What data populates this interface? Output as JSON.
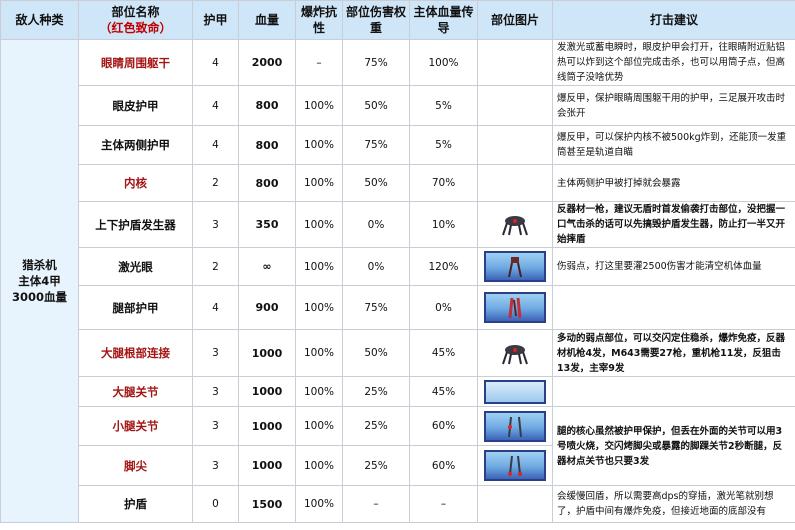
{
  "headers": {
    "enemy_type": "敌人种类",
    "part_name": "部位名称",
    "part_name_note": "（红色致命）",
    "armor": "护甲",
    "hp": "血量",
    "explosion_resist": "爆炸抗性",
    "damage_weight": "部位伤害权重",
    "main_hp_transfer": "主体血量传导",
    "part_image": "部位图片",
    "attack_advice": "打击建议"
  },
  "enemy": {
    "name": "猎杀机",
    "desc1": "主体4甲",
    "desc2": "3000血量"
  },
  "rows": [
    {
      "part": "眼睛周围躯干",
      "armor": "4",
      "hp": "2000",
      "explosion": "–",
      "weight": "75%",
      "transfer": "100%"
    },
    {
      "part": "眼皮护甲",
      "armor": "4",
      "hp": "800",
      "explosion": "100%",
      "weight": "50%",
      "transfer": "5%"
    },
    {
      "part": "主体两侧护甲",
      "armor": "4",
      "hp": "800",
      "explosion": "100%",
      "weight": "75%",
      "transfer": "5%"
    },
    {
      "part": "内核",
      "armor": "2",
      "hp": "800",
      "explosion": "100%",
      "weight": "50%",
      "transfer": "70%"
    },
    {
      "part": "上下护盾发生器",
      "armor": "3",
      "hp": "350",
      "explosion": "100%",
      "weight": "0%",
      "transfer": "10%"
    },
    {
      "part": "激光眼",
      "armor": "2",
      "hp": "∞",
      "explosion": "100%",
      "weight": "0%",
      "transfer": "120%"
    },
    {
      "part": "腿部护甲",
      "armor": "4",
      "hp": "900",
      "explosion": "100%",
      "weight": "75%",
      "transfer": "0%"
    },
    {
      "part": "大腿根部连接",
      "armor": "3",
      "hp": "1000",
      "explosion": "100%",
      "weight": "50%",
      "transfer": "45%"
    },
    {
      "part": "大腿关节",
      "armor": "3",
      "hp": "1000",
      "explosion": "100%",
      "weight": "25%",
      "transfer": "45%"
    },
    {
      "part": "小腿关节",
      "armor": "3",
      "hp": "1000",
      "explosion": "100%",
      "weight": "25%",
      "transfer": "60%"
    },
    {
      "part": "脚尖",
      "armor": "3",
      "hp": "1000",
      "explosion": "100%",
      "weight": "25%",
      "transfer": "60%"
    },
    {
      "part": "护盾",
      "armor": "0",
      "hp": "1500",
      "explosion": "100%",
      "weight": "–",
      "transfer": "–"
    }
  ],
  "advice": {
    "a0": "发激光或蓄电瞬时，眼皮护甲会打开，往眼睛附近贴铝热可以炸到这个部位完成击杀，也可以用筒子点，但高线筒子没啥优势",
    "a1": "爆反甲，保护眼睛周围躯干用的护甲，三足展开攻击时会张开",
    "a2": "爆反甲，可以保护内核不被500kg炸到，还能顶一发重筒甚至是轨道自瞄",
    "a3": "主体两侧护甲被打掉就会暴露",
    "a4": "反器材一枪，建议无盾时首发偷袭打击部位，没把握一口气击杀的话可以先搞毁护盾发生器，防止打一半又开始摔盾",
    "a5": "伤弱点，打这里要灌2500伤害才能清空机体血量",
    "a7": "多动的弱点部位，可以交闪定住稳杀，爆炸免疫，反器材机枪4发，M643需要27枪，重机枪11发，反狙击13发，主宰9发",
    "a9": "腿的核心虽然被护甲保护，但丢在外面的关节可以用3号喷火烧，交闪烤脚尖或暴露的脚踝关节2秒断腿，反器材点关节也只要3发",
    "a11": "会缓慢回盾，所以需要高dps的穿插，激光笔就别想了，护盾中间有爆炸免疫，但接近地面的底部没有"
  },
  "colors": {
    "header_bg": "#cfe6f8",
    "critical_text": "#a31515",
    "thumb_frame": "#2b3f86"
  }
}
